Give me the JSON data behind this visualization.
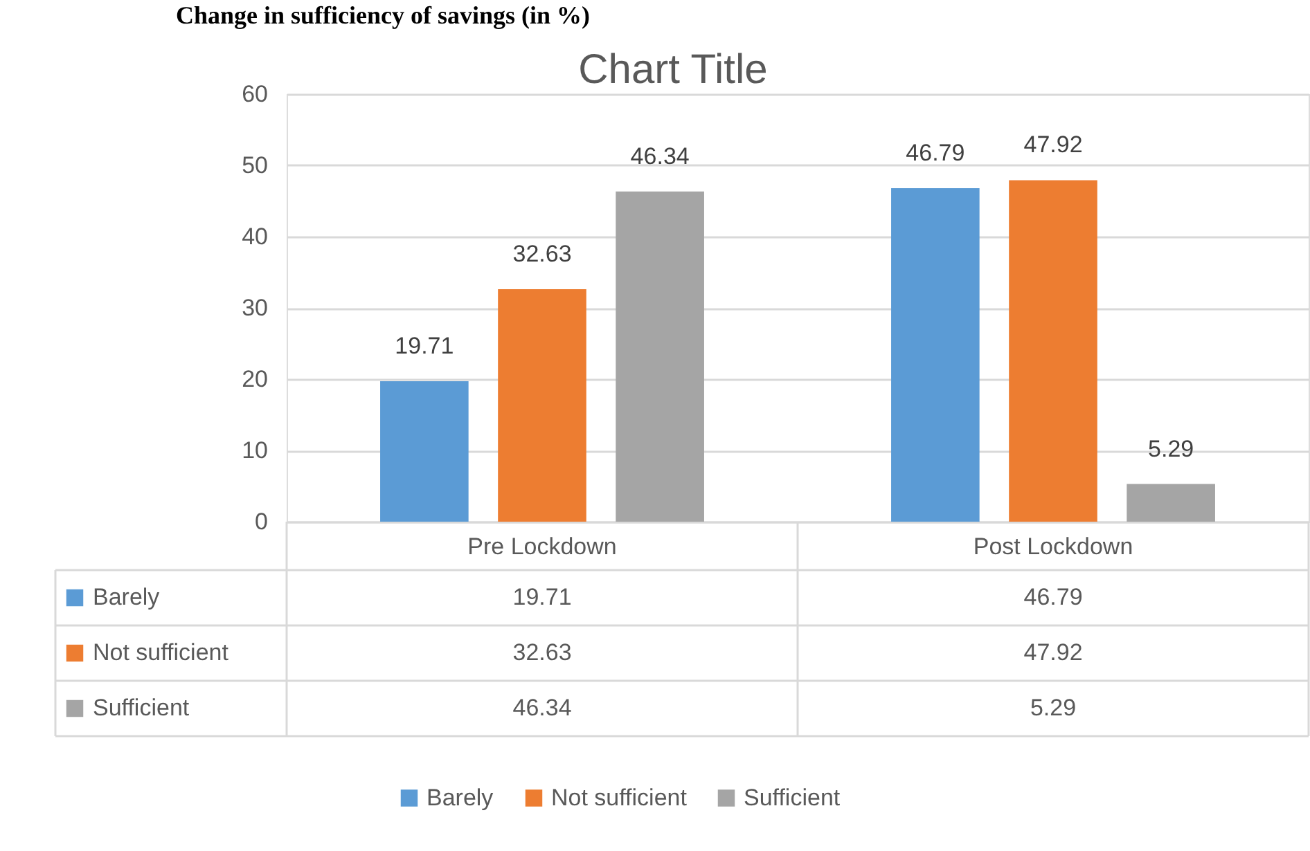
{
  "chart_data": {
    "type": "bar",
    "title": "Chart Title",
    "annotations": [
      "Change in sufficiency of savings (in %)",
      "19.71",
      "46.79",
      "32.63",
      "47.92",
      "46.34",
      "5.29"
    ],
    "categories": [
      "Pre Lockdown",
      "Post Lockdown"
    ],
    "series": [
      {
        "name": "Barely",
        "color": "#5b9bd5",
        "values": [
          19.71,
          46.79
        ],
        "value_labels": [
          "19.71",
          "46.79"
        ]
      },
      {
        "name": "Not sufficient",
        "color": "#ed7d31",
        "values": [
          32.63,
          47.92
        ],
        "value_labels": [
          "32.63",
          "47.92"
        ]
      },
      {
        "name": "Sufficient",
        "color": "#a5a5a5",
        "values": [
          46.34,
          5.29
        ],
        "value_labels": [
          "46.34",
          "5.29"
        ]
      }
    ],
    "ylim": [
      0,
      60
    ],
    "yticks": [
      0,
      10,
      20,
      30,
      40,
      50,
      60
    ],
    "grid": "y",
    "legend": "bottom"
  }
}
